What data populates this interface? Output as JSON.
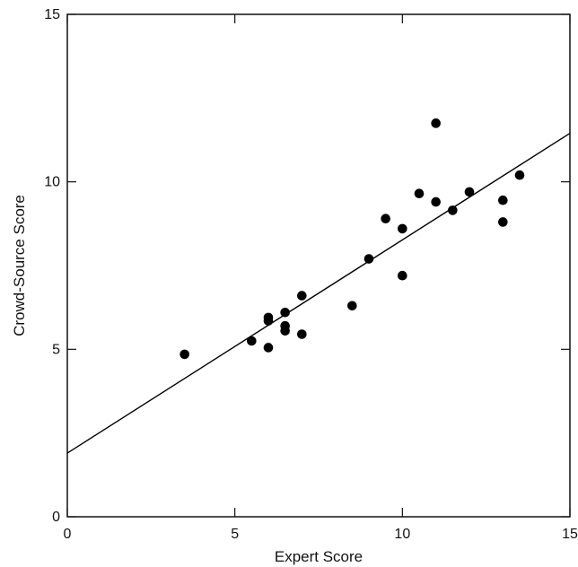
{
  "chart_data": {
    "type": "scatter",
    "xlabel": "Expert Score",
    "ylabel": "Crowd-Source Score",
    "xlim": [
      0,
      15
    ],
    "ylim": [
      0,
      15
    ],
    "x_ticks": [
      "0",
      "5",
      "10",
      "15"
    ],
    "y_ticks": [
      "0",
      "5",
      "10",
      "15"
    ],
    "grid": false,
    "legend": "none",
    "marker_color": "#000000",
    "line_color": "#000000",
    "points": [
      {
        "x": 3.5,
        "y": 4.85
      },
      {
        "x": 5.5,
        "y": 5.25
      },
      {
        "x": 6.0,
        "y": 5.05
      },
      {
        "x": 6.0,
        "y": 5.85
      },
      {
        "x": 6.0,
        "y": 5.95
      },
      {
        "x": 6.5,
        "y": 5.55
      },
      {
        "x": 6.5,
        "y": 5.7
      },
      {
        "x": 6.5,
        "y": 6.1
      },
      {
        "x": 7.0,
        "y": 5.45
      },
      {
        "x": 7.0,
        "y": 6.6
      },
      {
        "x": 8.5,
        "y": 6.3
      },
      {
        "x": 9.0,
        "y": 7.7
      },
      {
        "x": 9.5,
        "y": 8.9
      },
      {
        "x": 10.0,
        "y": 7.2
      },
      {
        "x": 10.0,
        "y": 8.6
      },
      {
        "x": 10.5,
        "y": 9.65
      },
      {
        "x": 11.0,
        "y": 9.4
      },
      {
        "x": 11.0,
        "y": 11.75
      },
      {
        "x": 11.5,
        "y": 9.15
      },
      {
        "x": 12.0,
        "y": 9.7
      },
      {
        "x": 13.0,
        "y": 8.8
      },
      {
        "x": 13.0,
        "y": 9.45
      },
      {
        "x": 13.5,
        "y": 10.2
      }
    ],
    "trend_line": {
      "x": [
        0,
        15
      ],
      "y": [
        1.9,
        11.45
      ]
    }
  }
}
